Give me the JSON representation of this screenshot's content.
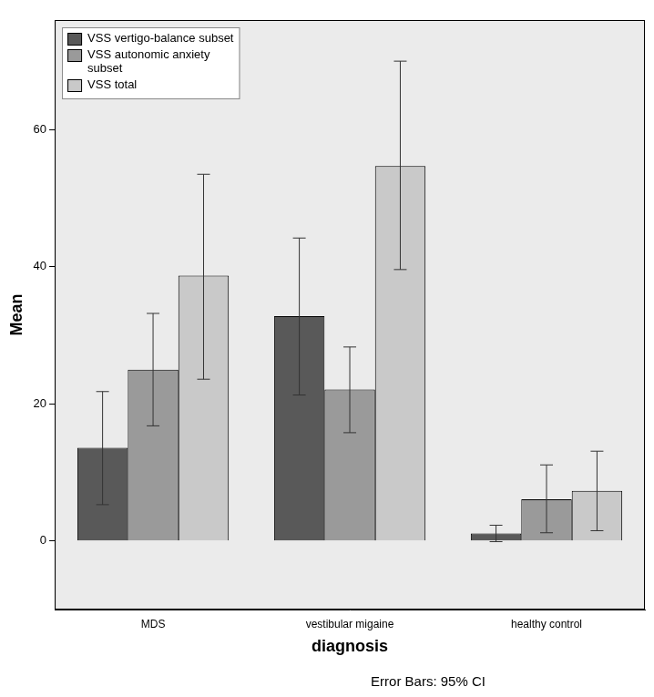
{
  "chart_data": {
    "type": "bar",
    "categories": [
      "MDS",
      "vestibular migaine",
      "healthy control"
    ],
    "x_label": "diagnosis",
    "y_label": "Mean",
    "annotation": "Error Bars: 95% CI",
    "series": [
      {
        "name": "VSS vertigo-balance subset",
        "color": "#595959",
        "values": [
          13.6,
          32.8,
          1.1
        ],
        "ci_low": [
          5.3,
          21.3,
          -0.1
        ],
        "ci_high": [
          21.8,
          44.2,
          2.3
        ]
      },
      {
        "name": "VSS autonomic anxiety subset",
        "color": "#9a9a9a",
        "values": [
          25.0,
          22.1,
          6.1
        ],
        "ci_low": [
          16.8,
          15.8,
          1.2
        ],
        "ci_high": [
          33.2,
          28.3,
          11.1
        ]
      },
      {
        "name": "VSS total",
        "color": "#c9c9c9",
        "values": [
          38.7,
          54.7,
          7.3
        ],
        "ci_low": [
          23.6,
          39.6,
          1.5
        ],
        "ci_high": [
          53.5,
          70.0,
          13.1
        ]
      }
    ],
    "ylim": [
      -10,
      76
    ],
    "yticks": [
      0,
      20,
      40,
      60
    ],
    "grid": false,
    "legend": "upper left"
  }
}
